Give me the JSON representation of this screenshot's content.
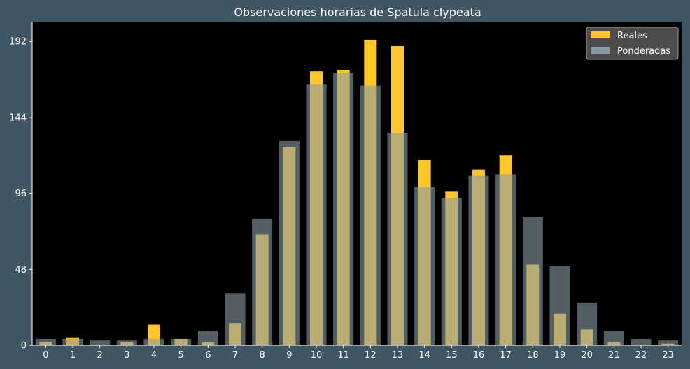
{
  "chart_data": {
    "type": "bar",
    "title": "Observaciones horarias de Spatula clypeata",
    "xlabel": "",
    "ylabel": "",
    "categories": [
      "0",
      "1",
      "2",
      "3",
      "4",
      "5",
      "6",
      "7",
      "8",
      "9",
      "10",
      "11",
      "12",
      "13",
      "14",
      "15",
      "16",
      "17",
      "18",
      "19",
      "20",
      "21",
      "22",
      "23"
    ],
    "ylim": [
      0,
      204
    ],
    "yticks": [
      0,
      48,
      96,
      144,
      192
    ],
    "series": [
      {
        "name": "Reales",
        "color": "#ffc629",
        "values": [
          2,
          5,
          0,
          2,
          13,
          4,
          2,
          14,
          70,
          125,
          173,
          174,
          193,
          189,
          117,
          97,
          111,
          120,
          51,
          20,
          10,
          2,
          0,
          1
        ]
      },
      {
        "name": "Ponderadas",
        "color": "#8b9da5",
        "values": [
          4,
          4,
          3,
          3,
          4,
          4,
          9,
          33,
          80,
          129,
          165,
          172,
          164,
          134,
          100,
          93,
          107,
          108,
          81,
          50,
          27,
          9,
          4,
          3
        ]
      }
    ],
    "legend_position": "top-right",
    "grid": false,
    "plot_background": "#000000",
    "figure_background": "#415663"
  }
}
